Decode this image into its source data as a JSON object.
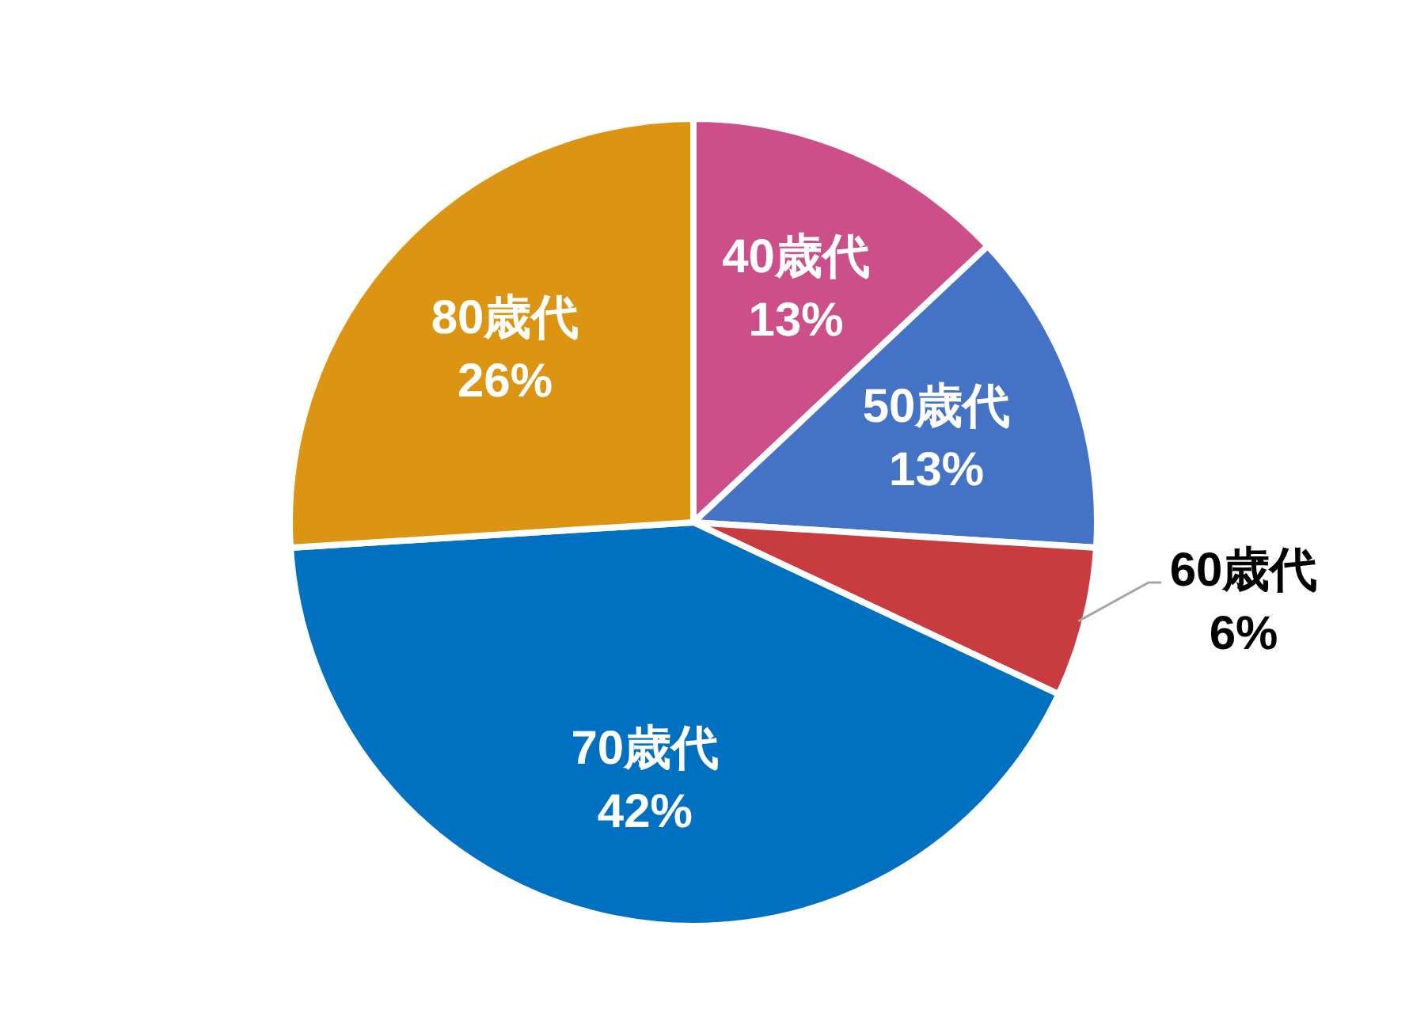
{
  "chart_data": {
    "type": "pie",
    "categories": [
      "40歳代",
      "50歳代",
      "60歳代",
      "70歳代",
      "80歳代"
    ],
    "values": [
      13,
      13,
      6,
      42,
      26
    ],
    "value_labels": [
      "13%",
      "13%",
      "6%",
      "42%",
      "26%"
    ],
    "colors": [
      "#cc4f8a",
      "#4472c4",
      "#c83b3f",
      "#0070c0",
      "#dc9512"
    ],
    "legend": false
  }
}
